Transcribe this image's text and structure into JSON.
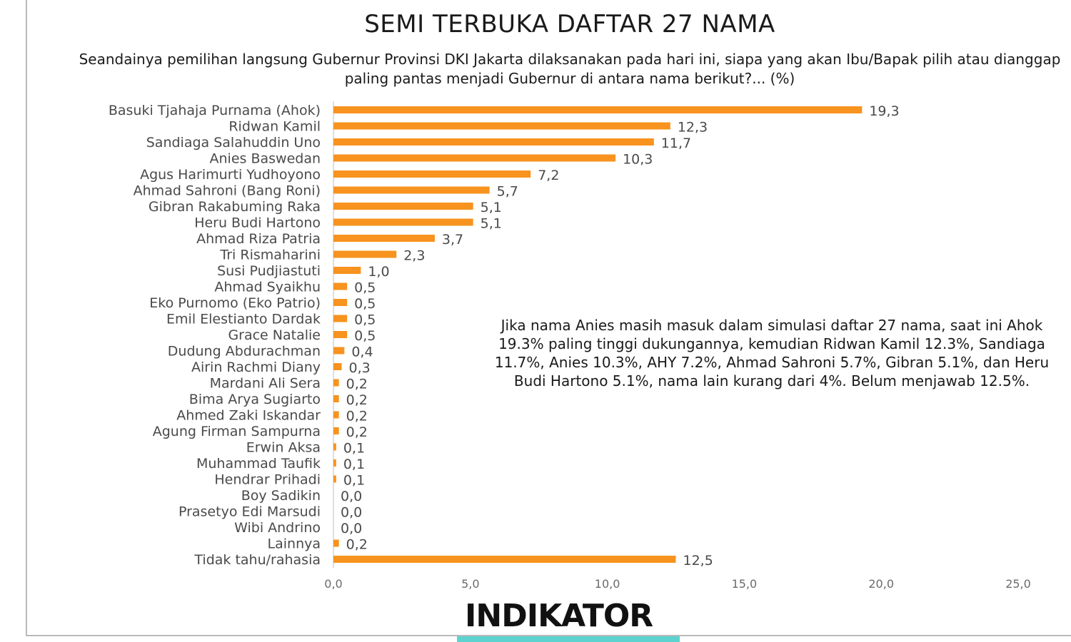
{
  "title": "SEMI TERBUKA DAFTAR 27 NAMA",
  "subtitle": "Seandainya pemilihan langsung Gubernur Provinsi DKI Jakarta dilaksanakan pada hari ini, siapa yang akan Ibu/Bapak pilih atau dianggap paling pantas menjadi Gubernur di antara nama berikut?... (%)",
  "note": "Jika nama Anies masih masuk dalam simulasi daftar 27 nama, saat ini Ahok 19.3% paling tinggi dukungannya, kemudian Ridwan Kamil 12.3%, Sandiaga 11.7%, Anies 10.3%, AHY 7.2%, Ahmad Sahroni 5.7%, Gibran 5.1%, dan Heru Budi Hartono 5.1%, nama lain kurang dari 4%. Belum menjawab 12.5%.",
  "logo": "INDIKATOR",
  "colors": {
    "bar": "#f7931e",
    "logo_accent": "#5cd3cf"
  },
  "chart_data": {
    "type": "bar",
    "orientation": "horizontal",
    "categories": [
      "Basuki Tjahaja Purnama (Ahok)",
      "Ridwan Kamil",
      "Sandiaga Salahuddin Uno",
      "Anies Baswedan",
      "Agus Harimurti Yudhoyono",
      "Ahmad Sahroni (Bang Roni)",
      "Gibran Rakabuming Raka",
      "Heru Budi Hartono",
      "Ahmad Riza Patria",
      "Tri Rismaharini",
      "Susi Pudjiastuti",
      "Ahmad Syaikhu",
      "Eko Purnomo (Eko Patrio)",
      "Emil Elestianto Dardak",
      "Grace Natalie",
      "Dudung Abdurachman",
      "Airin Rachmi Diany",
      "Mardani Ali Sera",
      "Bima Arya Sugiarto",
      "Ahmed Zaki Iskandar",
      "Agung Firman Sampurna",
      "Erwin Aksa",
      "Muhammad Taufik",
      "Hendrar Prihadi",
      "Boy Sadikin",
      "Prasetyo Edi Marsudi",
      "Wibi Andrino",
      "Lainnya",
      "Tidak tahu/rahasia"
    ],
    "values": [
      19.3,
      12.3,
      11.7,
      10.3,
      7.2,
      5.7,
      5.1,
      5.1,
      3.7,
      2.3,
      1.0,
      0.5,
      0.5,
      0.5,
      0.5,
      0.4,
      0.3,
      0.2,
      0.2,
      0.2,
      0.2,
      0.1,
      0.1,
      0.1,
      0.0,
      0.0,
      0.0,
      0.2,
      12.5
    ],
    "value_labels": [
      "19,3",
      "12,3",
      "11,7",
      "10,3",
      "7,2",
      "5,7",
      "5,1",
      "5,1",
      "3,7",
      "2,3",
      "1,0",
      "0,5",
      "0,5",
      "0,5",
      "0,5",
      "0,4",
      "0,3",
      "0,2",
      "0,2",
      "0,2",
      "0,2",
      "0,1",
      "0,1",
      "0,1",
      "0,0",
      "0,0",
      "0,0",
      "0,2",
      "12,5"
    ],
    "xlim": [
      0,
      25
    ],
    "xticks": [
      0,
      5,
      10,
      15,
      20,
      25
    ],
    "xtick_labels": [
      "0,0",
      "5,0",
      "10,0",
      "15,0",
      "20,0",
      "25,0"
    ],
    "grid": false,
    "legend": "none"
  }
}
